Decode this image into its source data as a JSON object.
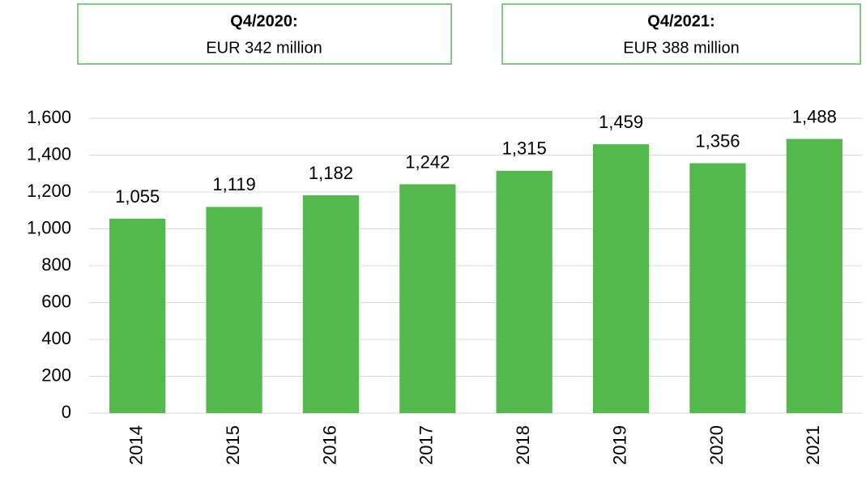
{
  "chart_data": {
    "type": "bar",
    "annotations": [
      {
        "title": "Q4/2020:",
        "text": "EUR 342 million"
      },
      {
        "title": "Q4/2021:",
        "text": "EUR 388 million"
      }
    ],
    "categories": [
      "2014",
      "2015",
      "2016",
      "2017",
      "2018",
      "2019",
      "2020",
      "2021"
    ],
    "values": [
      1055,
      1119,
      1182,
      1242,
      1315,
      1459,
      1356,
      1488
    ],
    "value_labels": [
      "1,055",
      "1,119",
      "1,182",
      "1,242",
      "1,315",
      "1,459",
      "1,356",
      "1,488"
    ],
    "color": "#53b94c",
    "ylim": [
      0,
      1600
    ],
    "yticks": [
      0,
      200,
      400,
      600,
      800,
      {
        "value": 1000,
        "label": "1,000"
      },
      {
        "value": 1200,
        "label": "1,200"
      },
      {
        "value": 1400,
        "label": "1,400"
      },
      {
        "value": 1600,
        "label": "1,600"
      }
    ],
    "grid": true
  }
}
